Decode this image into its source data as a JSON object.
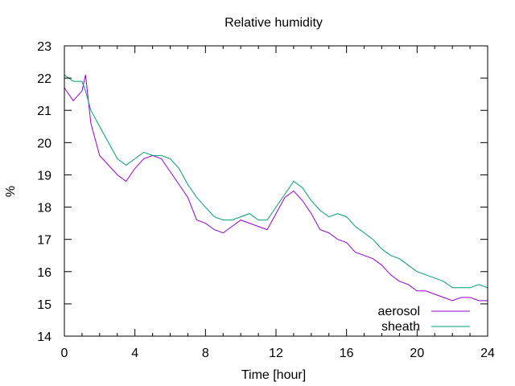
{
  "chart_data": {
    "type": "line",
    "title": "Relative humidity",
    "xlabel": "Time [hour]",
    "ylabel": "%",
    "xlim": [
      0,
      24
    ],
    "ylim": [
      14,
      23
    ],
    "xticks": [
      0,
      4,
      8,
      12,
      16,
      20,
      24
    ],
    "yticks": [
      14,
      15,
      16,
      17,
      18,
      19,
      20,
      21,
      22,
      23
    ],
    "grid": false,
    "legend_position": "bottom-right",
    "series": [
      {
        "name": "aerosol",
        "color": "#9400d3",
        "x": [
          0,
          0.5,
          1,
          1.2,
          1.5,
          2,
          2.5,
          3,
          3.5,
          4,
          4.5,
          5,
          5.5,
          6,
          6.5,
          7,
          7.5,
          8,
          8.5,
          9,
          9.5,
          10,
          10.5,
          11,
          11.5,
          12,
          12.5,
          13,
          13.5,
          14,
          14.5,
          15,
          15.5,
          16,
          16.5,
          17,
          17.5,
          18,
          18.5,
          19,
          19.5,
          20,
          20.5,
          21,
          21.5,
          22,
          22.5,
          23,
          23.5,
          24
        ],
        "y": [
          21.7,
          21.3,
          21.6,
          22.1,
          20.6,
          19.6,
          19.3,
          19.0,
          18.8,
          19.2,
          19.5,
          19.6,
          19.5,
          19.1,
          18.7,
          18.3,
          17.6,
          17.5,
          17.3,
          17.2,
          17.4,
          17.6,
          17.5,
          17.4,
          17.3,
          17.8,
          18.3,
          18.5,
          18.2,
          17.8,
          17.3,
          17.2,
          17.0,
          16.9,
          16.6,
          16.5,
          16.4,
          16.2,
          15.9,
          15.7,
          15.6,
          15.4,
          15.4,
          15.3,
          15.2,
          15.1,
          15.2,
          15.2,
          15.1,
          15.1
        ]
      },
      {
        "name": "sheath",
        "color": "#009e73",
        "x": [
          0,
          0.5,
          1,
          1.2,
          1.5,
          2,
          2.5,
          3,
          3.5,
          4,
          4.5,
          5,
          5.5,
          6,
          6.5,
          7,
          7.5,
          8,
          8.5,
          9,
          9.5,
          10,
          10.5,
          11,
          11.5,
          12,
          12.5,
          13,
          13.5,
          14,
          14.5,
          15,
          15.5,
          16,
          16.5,
          17,
          17.5,
          18,
          18.5,
          19,
          19.5,
          20,
          20.5,
          21,
          21.5,
          22,
          22.5,
          23,
          23.5,
          24
        ],
        "y": [
          22.1,
          21.9,
          21.9,
          21.6,
          21.0,
          20.5,
          20.0,
          19.5,
          19.3,
          19.5,
          19.7,
          19.6,
          19.6,
          19.5,
          19.2,
          18.7,
          18.3,
          18.0,
          17.7,
          17.6,
          17.6,
          17.7,
          17.8,
          17.6,
          17.6,
          18.0,
          18.4,
          18.8,
          18.6,
          18.2,
          17.9,
          17.7,
          17.8,
          17.7,
          17.4,
          17.2,
          17.0,
          16.7,
          16.5,
          16.4,
          16.2,
          16.0,
          15.9,
          15.8,
          15.7,
          15.5,
          15.5,
          15.5,
          15.6,
          15.5
        ]
      }
    ]
  }
}
